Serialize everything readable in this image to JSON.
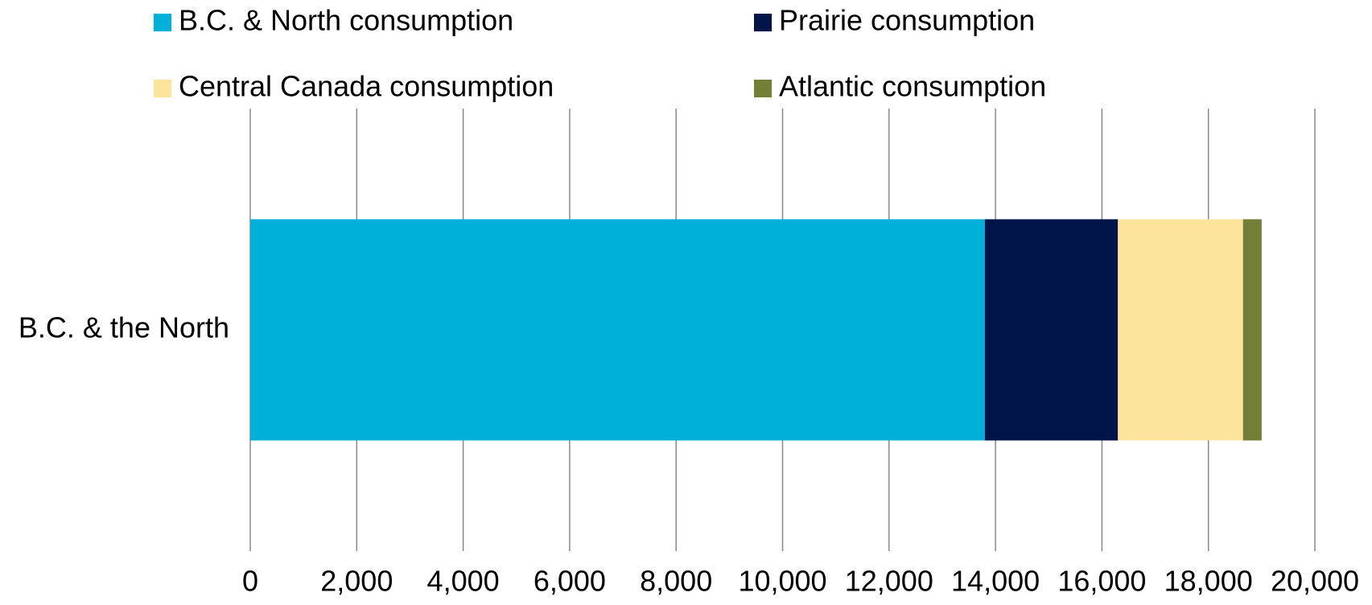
{
  "chart_data": {
    "type": "bar",
    "orientation": "horizontal",
    "stacked": true,
    "categories": [
      "B.C. & the North"
    ],
    "series": [
      {
        "name": "B.C. & North consumption",
        "color": "#00b0d8",
        "values": [
          13800
        ]
      },
      {
        "name": "Prairie consumption",
        "color": "#00144a",
        "values": [
          2500
        ]
      },
      {
        "name": "Central Canada consumption",
        "color": "#fde49c",
        "values": [
          2350
        ]
      },
      {
        "name": "Atlantic consumption",
        "color": "#737e36",
        "values": [
          350
        ]
      }
    ],
    "xlim": [
      0,
      20000
    ],
    "xticks": [
      0,
      {
        "value": 2000,
        "label": "2,000"
      },
      {
        "value": 4000,
        "label": "4,000"
      },
      {
        "value": 6000,
        "label": "6,000"
      },
      {
        "value": 8000,
        "label": "8,000"
      },
      {
        "value": 10000,
        "label": "10,000"
      },
      {
        "value": 12000,
        "label": "12,000"
      },
      {
        "value": 14000,
        "label": "14,000"
      },
      {
        "value": 16000,
        "label": "16,000"
      },
      {
        "value": 18000,
        "label": "18,000"
      },
      {
        "value": 20000,
        "label": "20,000"
      }
    ],
    "grid": true,
    "legend": "top"
  }
}
